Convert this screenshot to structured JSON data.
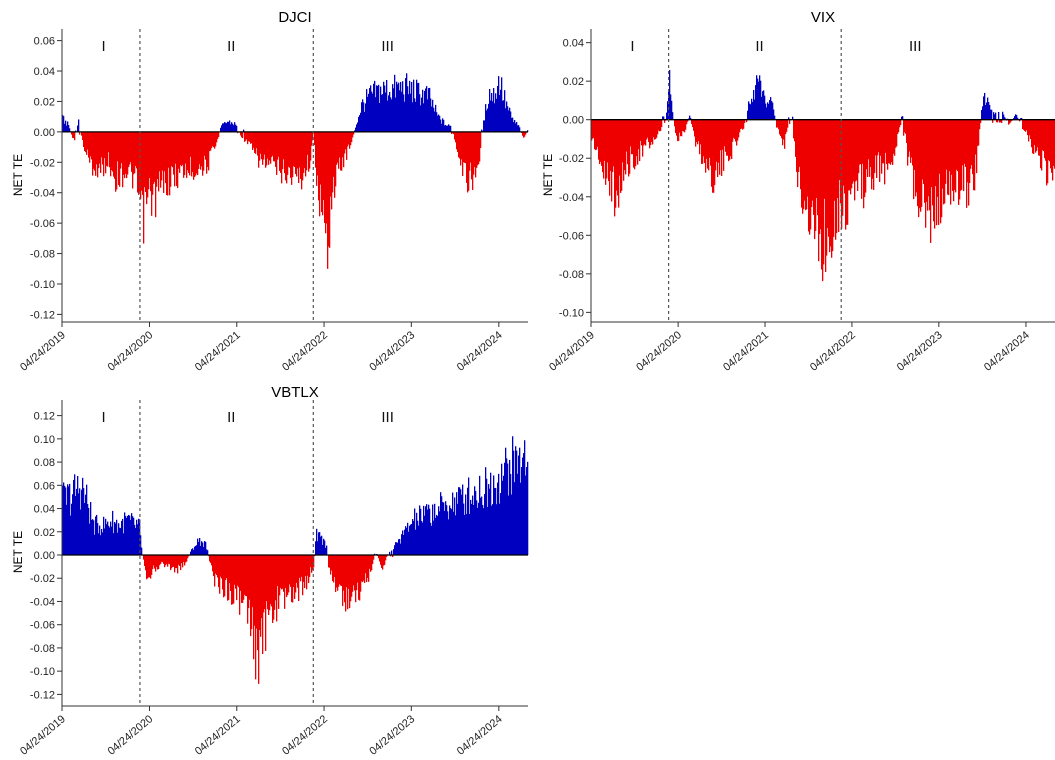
{
  "colors": {
    "positive": "#0000c0",
    "negative": "#ee0000",
    "axis": "#333333",
    "divider": "#555555"
  },
  "chart_data": [
    {
      "type": "bar",
      "title": "DJCI",
      "ylabel": "NET TE",
      "ylim": [
        -0.125,
        0.065
      ],
      "yticks": [
        0.06,
        0.04,
        0.02,
        0.0,
        -0.02,
        -0.04,
        -0.06,
        -0.08,
        -0.1,
        -0.12
      ],
      "ytick_labels": [
        "0.06",
        "0.04",
        "0.02",
        "0.00",
        "-0.02",
        "-0.04",
        "-0.06",
        "-0.08",
        "-0.10",
        "-0.12"
      ],
      "xlim": [
        "04/24/2019",
        "08/24/2024"
      ],
      "xticks": [
        "04/24/2019",
        "04/24/2020",
        "04/24/2021",
        "04/24/2022",
        "04/24/2023",
        "04/24/2024"
      ],
      "dividers": [
        "03/15/2020",
        "03/10/2022"
      ],
      "regimes": [
        {
          "label": "I",
          "at": "10/15/2019"
        },
        {
          "label": "II",
          "at": "04/01/2021"
        },
        {
          "label": "III",
          "at": "01/15/2023"
        }
      ],
      "series_points": [
        [
          "04/24/2019",
          0.01
        ],
        [
          "05/20/2019",
          0.005
        ],
        [
          "06/10/2019",
          -0.008
        ],
        [
          "07/01/2019",
          0.008
        ],
        [
          "07/20/2019",
          -0.01
        ],
        [
          "08/20/2019",
          -0.025
        ],
        [
          "10/01/2019",
          -0.03
        ],
        [
          "11/01/2019",
          -0.022
        ],
        [
          "12/01/2019",
          -0.035
        ],
        [
          "01/15/2020",
          -0.03
        ],
        [
          "02/15/2020",
          -0.035
        ],
        [
          "03/10/2020",
          -0.05
        ],
        [
          "03/22/2020",
          -0.07
        ],
        [
          "04/15/2020",
          -0.05
        ],
        [
          "05/15/2020",
          -0.05
        ],
        [
          "06/15/2020",
          -0.04
        ],
        [
          "08/01/2020",
          -0.035
        ],
        [
          "09/15/2020",
          -0.03
        ],
        [
          "11/01/2020",
          -0.028
        ],
        [
          "12/20/2020",
          -0.025
        ],
        [
          "01/25/2021",
          -0.01
        ],
        [
          "02/15/2021",
          0.004
        ],
        [
          "03/15/2021",
          0.008
        ],
        [
          "04/15/2021",
          0.006
        ],
        [
          "05/10/2021",
          -0.003
        ],
        [
          "06/15/2021",
          -0.01
        ],
        [
          "07/15/2021",
          -0.02
        ],
        [
          "09/01/2021",
          -0.025
        ],
        [
          "11/01/2021",
          -0.03
        ],
        [
          "01/15/2022",
          -0.035
        ],
        [
          "02/25/2022",
          -0.02
        ],
        [
          "03/10/2022",
          0.0
        ],
        [
          "03/20/2022",
          -0.03
        ],
        [
          "04/10/2022",
          -0.06
        ],
        [
          "05/01/2022",
          -0.09
        ],
        [
          "05/25/2022",
          -0.05
        ],
        [
          "06/20/2022",
          -0.03
        ],
        [
          "07/15/2022",
          -0.02
        ],
        [
          "08/10/2022",
          -0.01
        ],
        [
          "09/01/2022",
          0.004
        ],
        [
          "09/25/2022",
          0.02
        ],
        [
          "11/01/2022",
          0.028
        ],
        [
          "12/15/2022",
          0.032
        ],
        [
          "02/01/2023",
          0.033
        ],
        [
          "04/01/2023",
          0.034
        ],
        [
          "05/20/2023",
          0.03
        ],
        [
          "07/01/2023",
          0.028
        ],
        [
          "08/10/2023",
          0.012
        ],
        [
          "09/15/2023",
          0.005
        ],
        [
          "10/10/2023",
          0.004
        ],
        [
          "10/25/2023",
          -0.012
        ],
        [
          "11/15/2023",
          -0.03
        ],
        [
          "12/15/2023",
          -0.035
        ],
        [
          "01/20/2024",
          -0.035
        ],
        [
          "02/20/2024",
          0.01
        ],
        [
          "03/10/2024",
          0.03
        ],
        [
          "04/01/2024",
          0.028
        ],
        [
          "04/25/2024",
          0.04
        ],
        [
          "05/15/2024",
          0.025
        ],
        [
          "06/15/2024",
          0.01
        ],
        [
          "07/15/2024",
          0.004
        ],
        [
          "08/05/2024",
          -0.005
        ],
        [
          "08/24/2024",
          0.003
        ]
      ]
    },
    {
      "type": "bar",
      "title": "VIX",
      "ylabel": "NET TE",
      "ylim": [
        -0.105,
        0.045
      ],
      "yticks": [
        0.04,
        0.02,
        0.0,
        -0.02,
        -0.04,
        -0.06,
        -0.08,
        -0.1
      ],
      "ytick_labels": [
        "0.04",
        "0.02",
        "0.00",
        "-0.02",
        "-0.04",
        "-0.06",
        "-0.08",
        "-0.10"
      ],
      "xlim": [
        "04/24/2019",
        "08/24/2024"
      ],
      "xticks": [
        "04/24/2019",
        "04/24/2020",
        "04/24/2021",
        "04/24/2022",
        "04/24/2023",
        "04/24/2024"
      ],
      "dividers": [
        "03/15/2020",
        "03/10/2022"
      ],
      "regimes": [
        {
          "label": "I",
          "at": "10/15/2019"
        },
        {
          "label": "II",
          "at": "04/01/2021"
        },
        {
          "label": "III",
          "at": "01/15/2023"
        }
      ],
      "series_points": [
        [
          "04/24/2019",
          -0.01
        ],
        [
          "05/20/2019",
          -0.02
        ],
        [
          "06/20/2019",
          -0.03
        ],
        [
          "08/01/2019",
          -0.045
        ],
        [
          "09/01/2019",
          -0.035
        ],
        [
          "10/01/2019",
          -0.025
        ],
        [
          "11/10/2019",
          -0.02
        ],
        [
          "12/20/2019",
          -0.015
        ],
        [
          "01/25/2020",
          -0.01
        ],
        [
          "02/20/2020",
          -0.005
        ],
        [
          "03/05/2020",
          0.005
        ],
        [
          "03/15/2020",
          0.028
        ],
        [
          "03/28/2020",
          0.006
        ],
        [
          "04/15/2020",
          -0.012
        ],
        [
          "05/15/2020",
          -0.008
        ],
        [
          "06/10/2020",
          0.003
        ],
        [
          "07/01/2020",
          -0.012
        ],
        [
          "08/10/2020",
          -0.025
        ],
        [
          "09/20/2020",
          -0.035
        ],
        [
          "11/01/2020",
          -0.025
        ],
        [
          "12/15/2020",
          -0.015
        ],
        [
          "01/20/2021",
          -0.005
        ],
        [
          "02/10/2021",
          0.008
        ],
        [
          "03/01/2021",
          0.012
        ],
        [
          "03/20/2021",
          0.025
        ],
        [
          "04/10/2021",
          0.015
        ],
        [
          "05/01/2021",
          0.01
        ],
        [
          "05/20/2021",
          0.012
        ],
        [
          "06/10/2021",
          -0.005
        ],
        [
          "07/10/2021",
          -0.015
        ],
        [
          "08/10/2021",
          0.002
        ],
        [
          "09/01/2021",
          -0.03
        ],
        [
          "10/01/2021",
          -0.045
        ],
        [
          "11/01/2021",
          -0.06
        ],
        [
          "12/01/2021",
          -0.07
        ],
        [
          "01/01/2022",
          -0.075
        ],
        [
          "02/01/2022",
          -0.06
        ],
        [
          "03/01/2022",
          -0.05
        ],
        [
          "03/20/2022",
          -0.055
        ],
        [
          "04/15/2022",
          -0.045
        ],
        [
          "05/15/2022",
          -0.04
        ],
        [
          "06/15/2022",
          -0.04
        ],
        [
          "08/01/2022",
          -0.03
        ],
        [
          "09/15/2022",
          -0.03
        ],
        [
          "10/15/2022",
          -0.02
        ],
        [
          "11/10/2022",
          -0.002
        ],
        [
          "12/01/2022",
          -0.01
        ],
        [
          "12/20/2022",
          -0.03
        ],
        [
          "01/15/2023",
          -0.045
        ],
        [
          "02/10/2023",
          -0.055
        ],
        [
          "03/15/2023",
          -0.06
        ],
        [
          "04/15/2023",
          -0.05
        ],
        [
          "06/01/2023",
          -0.045
        ],
        [
          "07/15/2023",
          -0.04
        ],
        [
          "08/25/2023",
          -0.04
        ],
        [
          "09/25/2023",
          -0.03
        ],
        [
          "10/25/2023",
          0.015
        ],
        [
          "11/20/2023",
          0.01
        ],
        [
          "12/10/2023",
          0.003
        ],
        [
          "01/10/2024",
          0.005
        ],
        [
          "02/10/2024",
          -0.003
        ],
        [
          "03/10/2024",
          0.003
        ],
        [
          "04/10/2024",
          -0.005
        ],
        [
          "05/15/2024",
          -0.015
        ],
        [
          "06/15/2024",
          -0.02
        ],
        [
          "07/15/2024",
          -0.03
        ],
        [
          "08/24/2024",
          -0.04
        ]
      ]
    },
    {
      "type": "bar",
      "title": "VBTLX",
      "ylabel": "NET TE",
      "ylim": [
        -0.13,
        0.13
      ],
      "yticks": [
        0.12,
        0.1,
        0.08,
        0.06,
        0.04,
        0.02,
        0.0,
        -0.02,
        -0.04,
        -0.06,
        -0.08,
        -0.1,
        -0.12
      ],
      "ytick_labels": [
        "0.12",
        "0.10",
        "0.08",
        "0.06",
        "0.04",
        "0.02",
        "0.00",
        "-0.02",
        "-0.04",
        "-0.06",
        "-0.08",
        "-0.10",
        "-0.12"
      ],
      "xlim": [
        "04/24/2019",
        "08/24/2024"
      ],
      "xticks": [
        "04/24/2019",
        "04/24/2020",
        "04/24/2021",
        "04/24/2022",
        "04/24/2023",
        "04/24/2024"
      ],
      "dividers": [
        "03/15/2020",
        "03/10/2022"
      ],
      "regimes": [
        {
          "label": "I",
          "at": "10/15/2019"
        },
        {
          "label": "II",
          "at": "04/01/2021"
        },
        {
          "label": "III",
          "at": "01/15/2023"
        }
      ],
      "series_points": [
        [
          "04/24/2019",
          0.055
        ],
        [
          "06/01/2019",
          0.06
        ],
        [
          "07/10/2019",
          0.07
        ],
        [
          "08/10/2019",
          0.05
        ],
        [
          "09/01/2019",
          0.03
        ],
        [
          "10/15/2019",
          0.03
        ],
        [
          "11/15/2019",
          0.035
        ],
        [
          "12/15/2019",
          0.03
        ],
        [
          "01/20/2020",
          0.035
        ],
        [
          "02/20/2020",
          0.03
        ],
        [
          "03/10/2020",
          0.03
        ],
        [
          "03/20/2020",
          0.005
        ],
        [
          "04/10/2020",
          -0.02
        ],
        [
          "05/15/2020",
          -0.015
        ],
        [
          "06/15/2020",
          -0.008
        ],
        [
          "07/15/2020",
          -0.012
        ],
        [
          "08/15/2020",
          -0.015
        ],
        [
          "09/15/2020",
          -0.01
        ],
        [
          "10/15/2020",
          0.005
        ],
        [
          "11/15/2020",
          0.015
        ],
        [
          "12/15/2020",
          0.01
        ],
        [
          "01/15/2021",
          -0.025
        ],
        [
          "02/15/2021",
          -0.03
        ],
        [
          "03/15/2021",
          -0.035
        ],
        [
          "04/15/2021",
          -0.04
        ],
        [
          "05/15/2021",
          -0.05
        ],
        [
          "06/15/2021",
          -0.065
        ],
        [
          "07/10/2021",
          -0.095
        ],
        [
          "07/25/2021",
          -0.11
        ],
        [
          "08/15/2021",
          -0.075
        ],
        [
          "09/15/2021",
          -0.06
        ],
        [
          "10/15/2021",
          -0.045
        ],
        [
          "11/15/2021",
          -0.04
        ],
        [
          "12/15/2021",
          -0.04
        ],
        [
          "02/01/2022",
          -0.03
        ],
        [
          "03/10/2022",
          -0.01
        ],
        [
          "03/20/2022",
          0.02
        ],
        [
          "04/15/2022",
          0.015
        ],
        [
          "05/01/2022",
          0.01
        ],
        [
          "05/15/2022",
          -0.02
        ],
        [
          "06/15/2022",
          -0.03
        ],
        [
          "07/20/2022",
          -0.045
        ],
        [
          "08/20/2022",
          -0.04
        ],
        [
          "09/20/2022",
          -0.035
        ],
        [
          "10/20/2022",
          -0.025
        ],
        [
          "11/10/2022",
          -0.01
        ],
        [
          "11/25/2022",
          0.002
        ],
        [
          "12/10/2022",
          -0.005
        ],
        [
          "12/25/2022",
          -0.015
        ],
        [
          "01/10/2023",
          0.0
        ],
        [
          "02/01/2023",
          0.005
        ],
        [
          "03/01/2023",
          0.015
        ],
        [
          "04/01/2023",
          0.025
        ],
        [
          "05/01/2023",
          0.035
        ],
        [
          "06/15/2023",
          0.04
        ],
        [
          "08/01/2023",
          0.045
        ],
        [
          "09/15/2023",
          0.05
        ],
        [
          "11/01/2023",
          0.055
        ],
        [
          "12/15/2023",
          0.06
        ],
        [
          "02/01/2024",
          0.065
        ],
        [
          "03/15/2024",
          0.07
        ],
        [
          "05/01/2024",
          0.08
        ],
        [
          "06/15/2024",
          0.09
        ],
        [
          "08/24/2024",
          0.1
        ]
      ]
    }
  ]
}
